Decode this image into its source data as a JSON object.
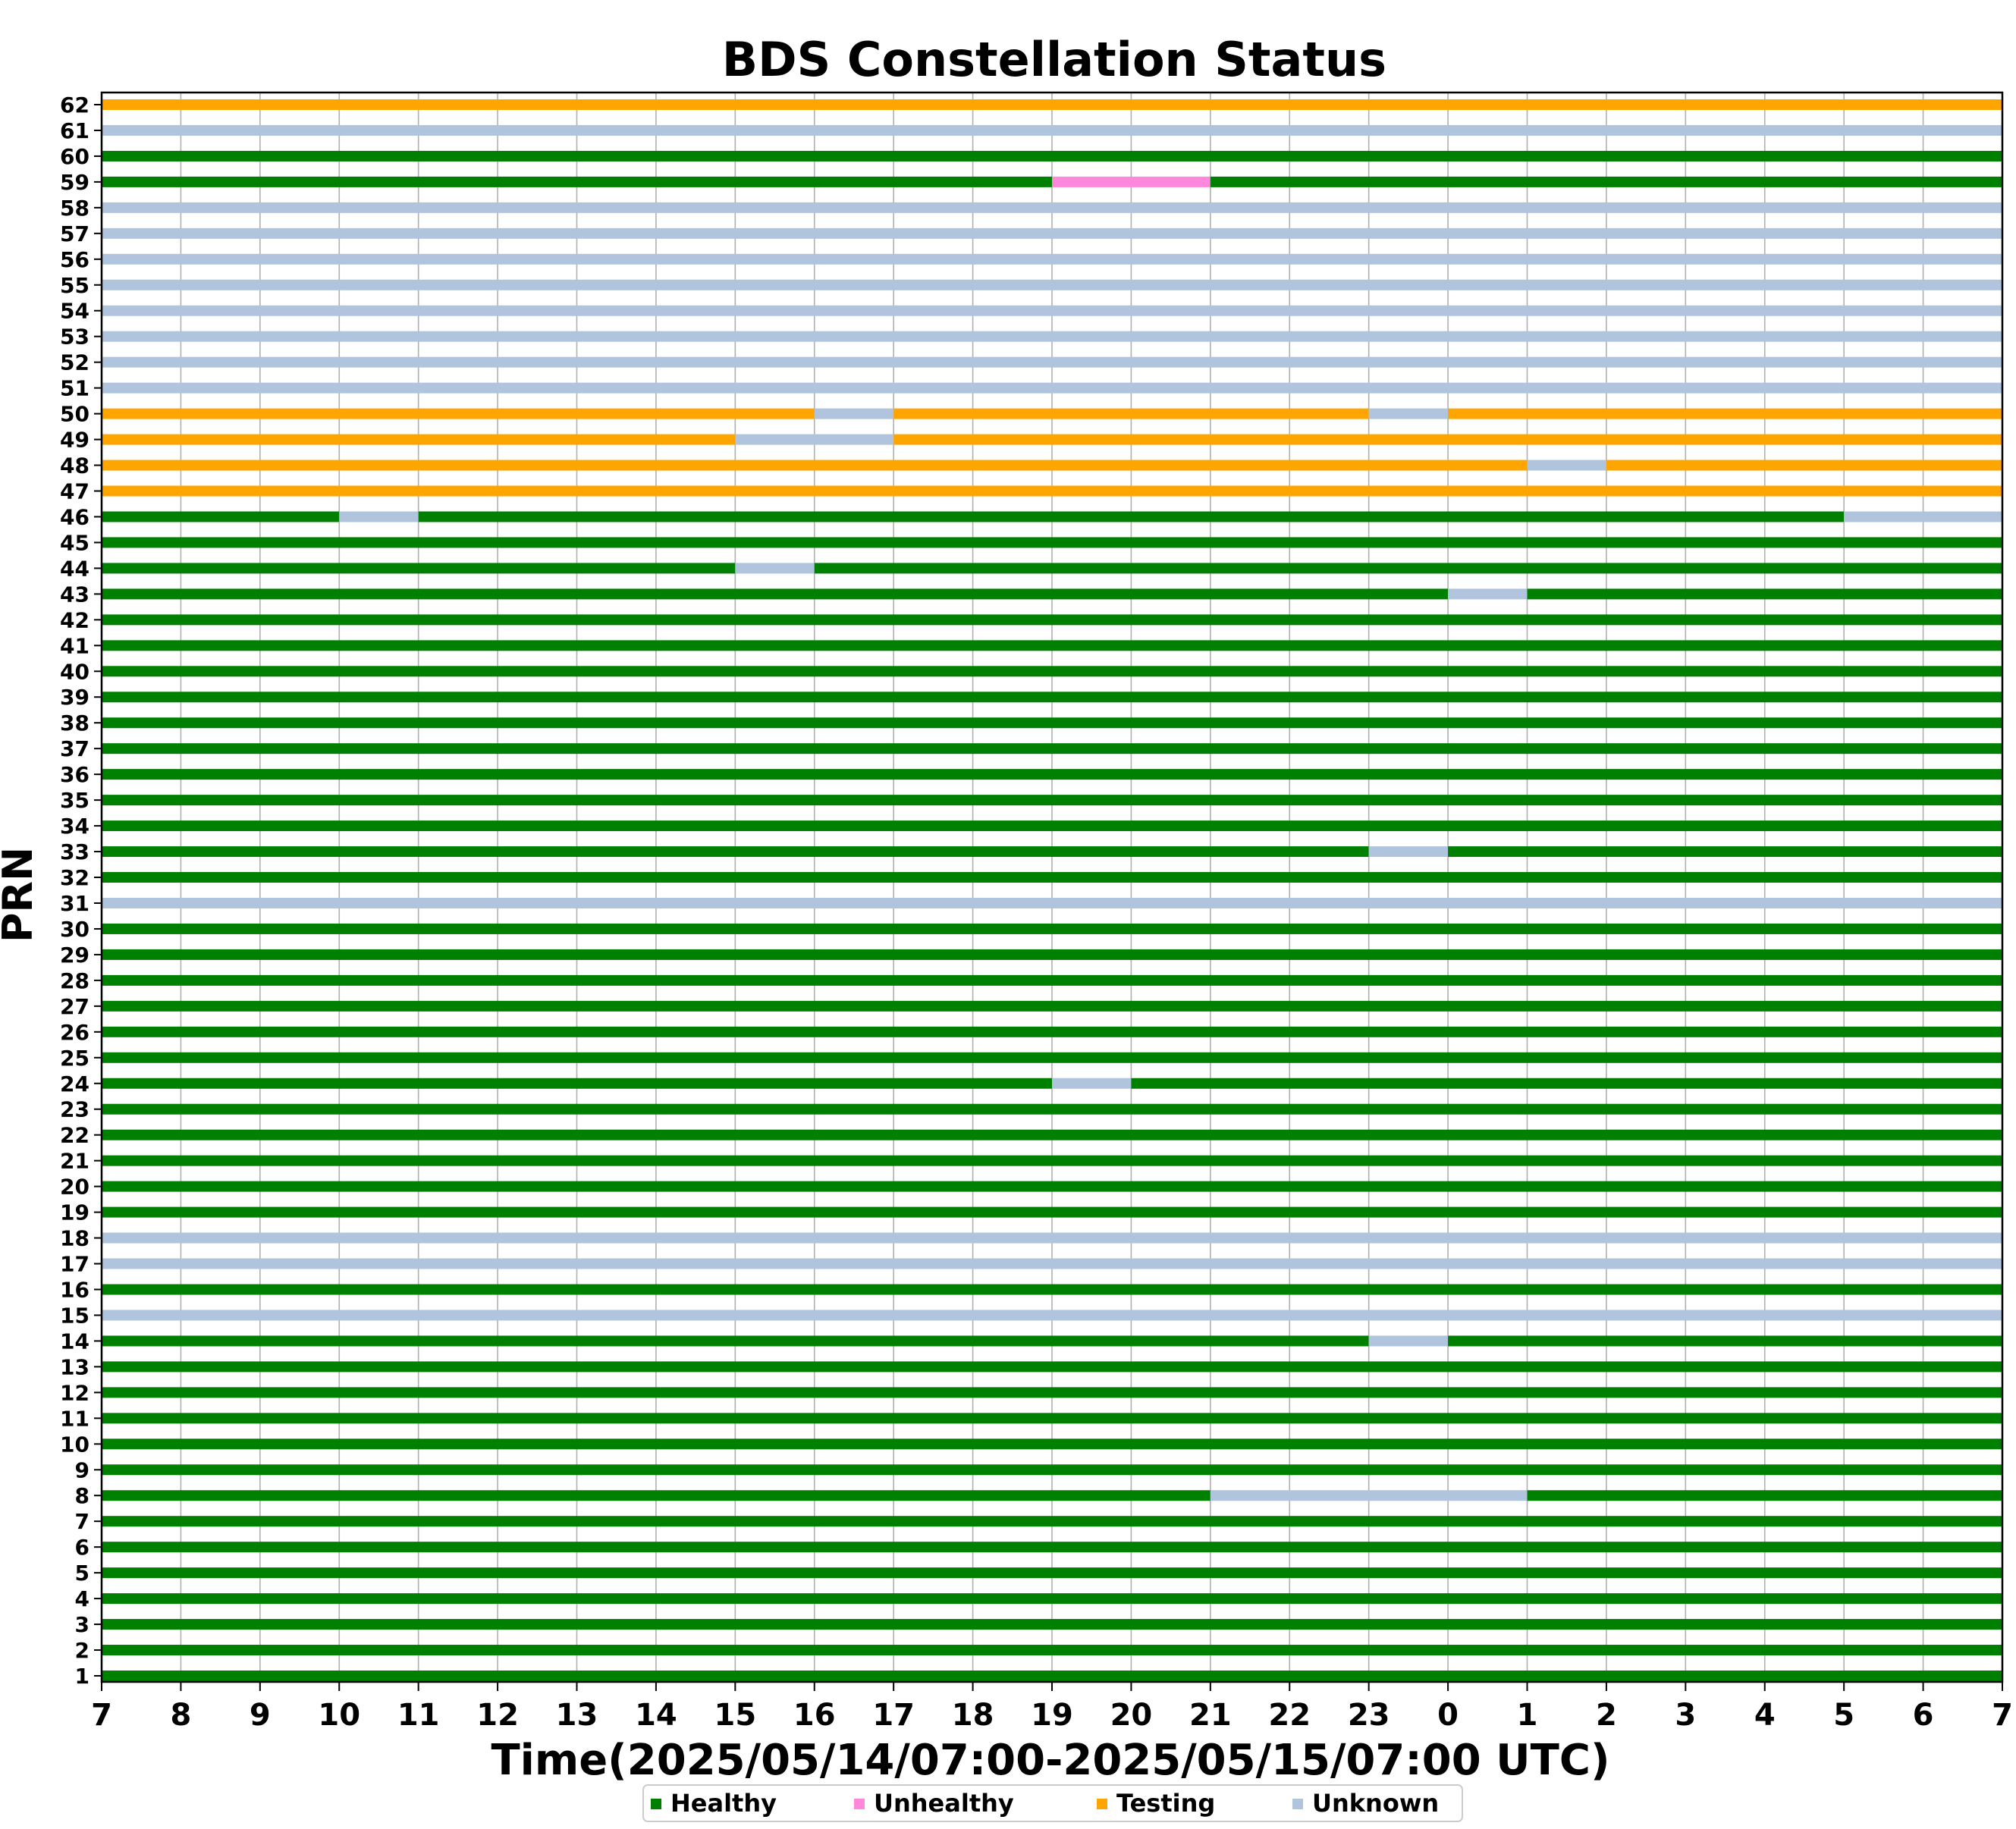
{
  "chart_data": {
    "type": "timeline",
    "title": "BDS Constellation Status",
    "xlabel": "Time(2025/05/14/07:00-2025/05/15/07:00 UTC)",
    "ylabel": "PRN",
    "x_ticks": [
      "7",
      "8",
      "9",
      "10",
      "11",
      "12",
      "13",
      "14",
      "15",
      "16",
      "17",
      "18",
      "19",
      "20",
      "21",
      "22",
      "23",
      "0",
      "1",
      "2",
      "3",
      "4",
      "5",
      "6",
      "7"
    ],
    "x_range_hours": [
      0,
      24
    ],
    "grid": "vertical",
    "legend_position": "bottom-center",
    "legend": [
      {
        "label": "Healthy",
        "status": "H",
        "color": "#008000"
      },
      {
        "label": "Unhealthy",
        "status": "U",
        "color": "#ff88dd"
      },
      {
        "label": "Testing",
        "status": "T",
        "color": "#ffa500"
      },
      {
        "label": "Unknown",
        "status": "N",
        "color": "#b0c4de"
      }
    ],
    "default_status": "H",
    "satellites_unknown_all_day": [
      15,
      17,
      18,
      31,
      51,
      52,
      53,
      54,
      55,
      56,
      57,
      58,
      61
    ],
    "satellites_testing_all_day": [
      47,
      62
    ],
    "segments": {
      "8": [
        [
          "H",
          "07:00",
          "21:00"
        ],
        [
          "N",
          "21:00",
          "01:00"
        ],
        [
          "H",
          "01:00",
          "07:00"
        ]
      ],
      "14": [
        [
          "H",
          "07:00",
          "23:00"
        ],
        [
          "N",
          "23:00",
          "00:00"
        ],
        [
          "H",
          "00:00",
          "07:00"
        ]
      ],
      "24": [
        [
          "H",
          "07:00",
          "19:00"
        ],
        [
          "N",
          "19:00",
          "20:00"
        ],
        [
          "H",
          "20:00",
          "07:00"
        ]
      ],
      "33": [
        [
          "H",
          "07:00",
          "23:00"
        ],
        [
          "N",
          "23:00",
          "00:00"
        ],
        [
          "H",
          "00:00",
          "07:00"
        ]
      ],
      "43": [
        [
          "H",
          "07:00",
          "00:00"
        ],
        [
          "N",
          "00:00",
          "01:00"
        ],
        [
          "H",
          "01:00",
          "07:00"
        ]
      ],
      "44": [
        [
          "H",
          "07:00",
          "15:00"
        ],
        [
          "N",
          "15:00",
          "16:00"
        ],
        [
          "H",
          "16:00",
          "07:00"
        ]
      ],
      "46": [
        [
          "H",
          "07:00",
          "10:00"
        ],
        [
          "N",
          "10:00",
          "11:00"
        ],
        [
          "H",
          "11:00",
          "05:00"
        ],
        [
          "N",
          "05:00",
          "07:00"
        ]
      ],
      "48": [
        [
          "T",
          "07:00",
          "01:00"
        ],
        [
          "N",
          "01:00",
          "02:00"
        ],
        [
          "T",
          "02:00",
          "07:00"
        ]
      ],
      "49": [
        [
          "T",
          "07:00",
          "15:00"
        ],
        [
          "N",
          "15:00",
          "17:00"
        ],
        [
          "T",
          "17:00",
          "07:00"
        ]
      ],
      "50": [
        [
          "T",
          "07:00",
          "16:00"
        ],
        [
          "N",
          "16:00",
          "17:00"
        ],
        [
          "T",
          "17:00",
          "23:00"
        ],
        [
          "N",
          "23:00",
          "00:00"
        ],
        [
          "T",
          "00:00",
          "07:00"
        ]
      ],
      "59": [
        [
          "H",
          "07:00",
          "19:00"
        ],
        [
          "U",
          "19:00",
          "21:00"
        ],
        [
          "H",
          "21:00",
          "07:00"
        ]
      ]
    },
    "prn_min": 1,
    "prn_max": 62
  }
}
